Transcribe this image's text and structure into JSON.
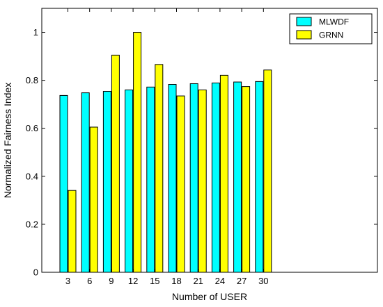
{
  "chart_data": {
    "type": "bar",
    "categories": [
      "3",
      "6",
      "9",
      "12",
      "15",
      "18",
      "21",
      "24",
      "27",
      "30"
    ],
    "series": [
      {
        "name": "MLWDF",
        "color": "#00ffff",
        "values": [
          0.737,
          0.748,
          0.754,
          0.76,
          0.772,
          0.783,
          0.786,
          0.789,
          0.793,
          0.795
        ]
      },
      {
        "name": "GRNN",
        "color": "#ffff00",
        "values": [
          0.341,
          0.605,
          0.905,
          1.0,
          0.866,
          0.735,
          0.76,
          0.821,
          0.774,
          0.843
        ]
      }
    ],
    "xlabel": "Number of USER",
    "ylabel": "Normalized Fairness Index",
    "ylim": [
      0,
      1.1
    ],
    "yticks": [
      0,
      0.2,
      0.4,
      0.6,
      0.8,
      1
    ],
    "ytick_labels": [
      "0",
      "0.2",
      "0.4",
      "0.6",
      "0.8",
      "1"
    ],
    "legend_position": "top-right",
    "grid": false
  }
}
